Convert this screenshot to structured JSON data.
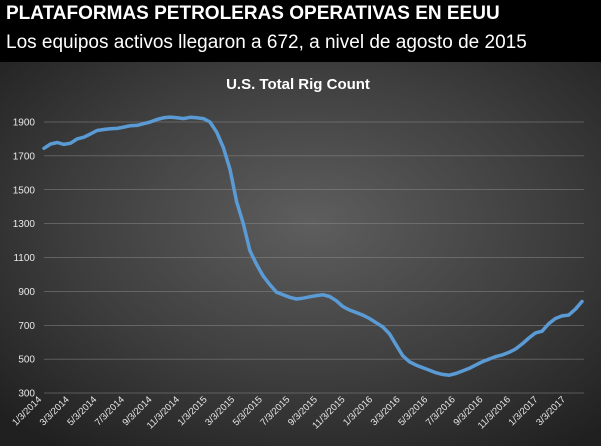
{
  "header": {
    "headline": "PLATAFORMAS PETROLERAS OPERATIVAS EN EEUU",
    "subheadline": "Los equipos activos llegaron a 672, a nivel de agosto de 2015"
  },
  "chart_data": {
    "type": "line",
    "title": "U.S. Total Rig Count",
    "xlabel": "",
    "ylabel": "",
    "ylim": [
      300,
      1900
    ],
    "yticks": [
      300,
      500,
      700,
      900,
      1100,
      1300,
      1500,
      1700,
      1900
    ],
    "grid": true,
    "legend": "none",
    "line_color": "#5b9bd5",
    "x_tick_labels": [
      "1/3/2014",
      "3/3/2014",
      "5/3/2014",
      "7/3/2014",
      "9/3/2014",
      "11/3/2014",
      "1/3/2015",
      "3/3/2015",
      "5/3/2015",
      "7/3/2015",
      "9/3/2015",
      "11/3/2015",
      "1/3/2016",
      "3/3/2016",
      "5/3/2016",
      "7/3/2016",
      "9/3/2016",
      "11/3/2016",
      "1/3/2017",
      "3/3/2017"
    ],
    "series": [
      {
        "values": [
          1745,
          1770,
          1779,
          1768,
          1775,
          1800,
          1810,
          1830,
          1850,
          1856,
          1860,
          1862,
          1870,
          1878,
          1880,
          1890,
          1900,
          1915,
          1925,
          1929,
          1925,
          1920,
          1928,
          1925,
          1920,
          1900,
          1840,
          1750,
          1620,
          1430,
          1300,
          1140,
          1060,
          990,
          940,
          895,
          880,
          865,
          855,
          860,
          868,
          875,
          880,
          870,
          845,
          810,
          790,
          775,
          760,
          740,
          715,
          690,
          650,
          585,
          520,
          485,
          465,
          450,
          435,
          420,
          410,
          405,
          415,
          430,
          445,
          465,
          485,
          500,
          515,
          525,
          540,
          560,
          590,
          625,
          655,
          665,
          710,
          740,
          755,
          760,
          795,
          840
        ]
      }
    ]
  }
}
